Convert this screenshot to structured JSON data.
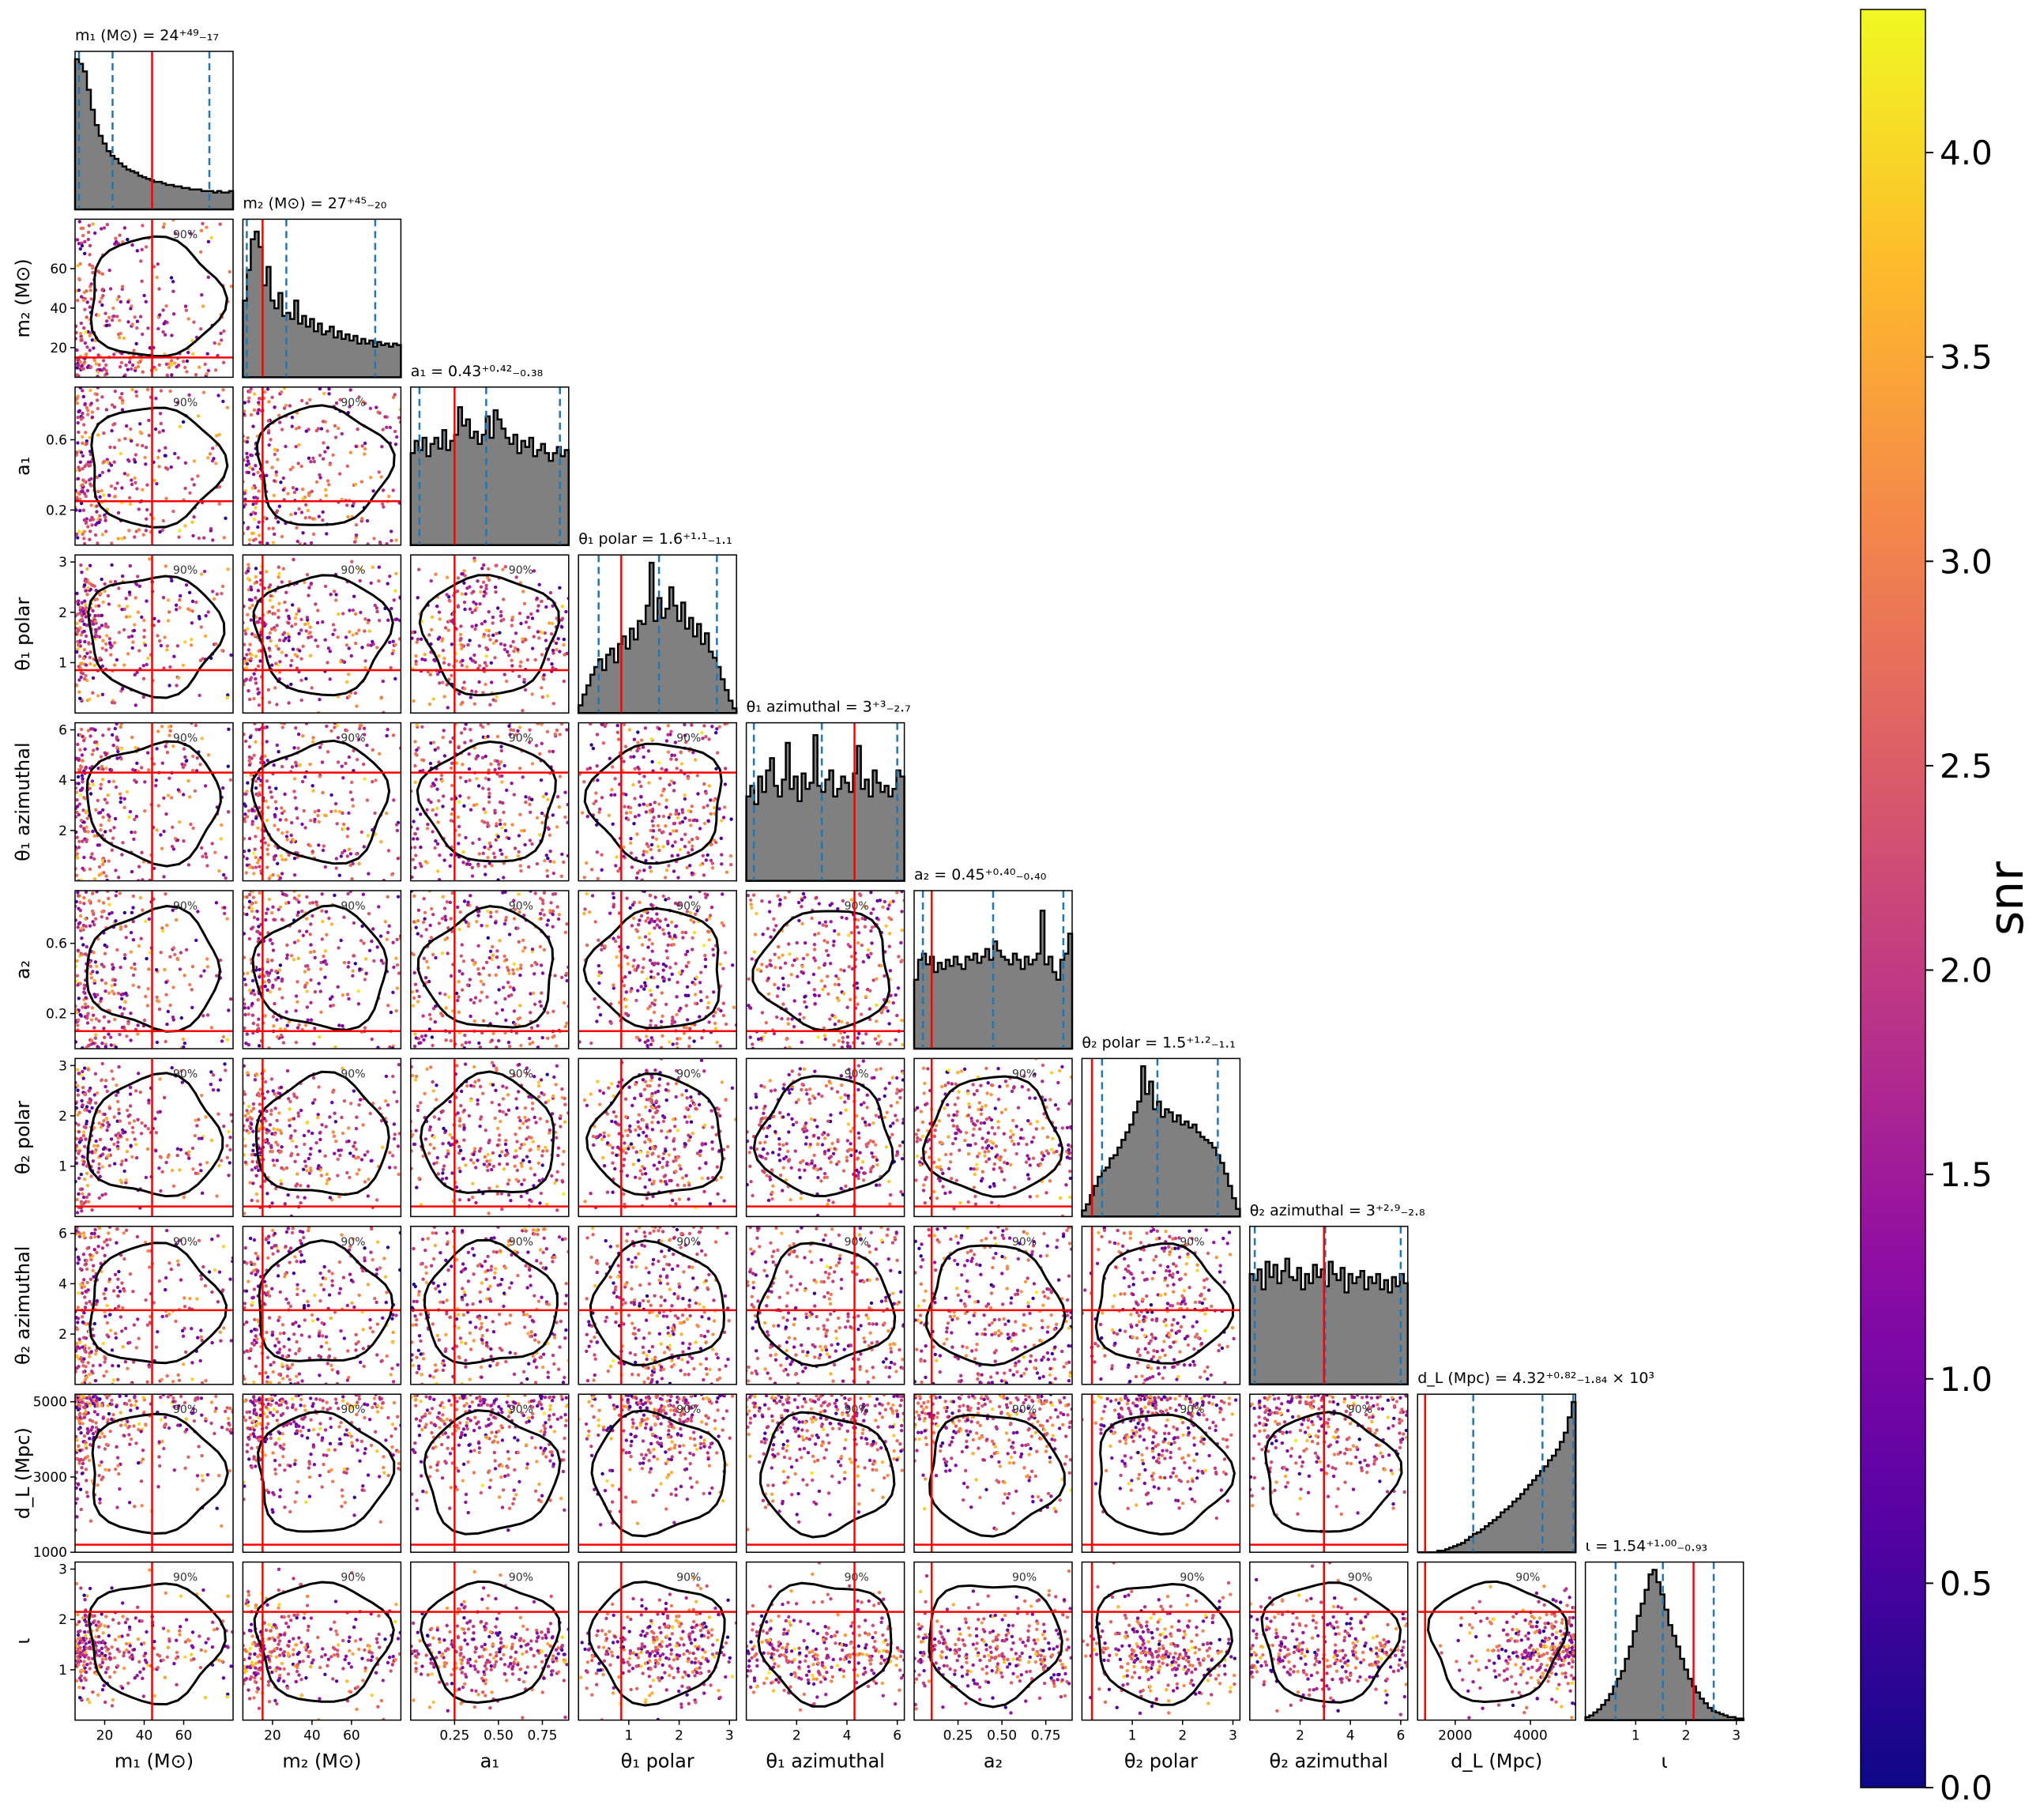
{
  "chart_data": {
    "type": "scatter",
    "variables": [
      {
        "key": "m1",
        "label": "m₁ (M⊙)",
        "ticks": [
          "40",
          "60"
        ],
        "tick_values": [
          40,
          60
        ],
        "range": [
          5,
          85
        ],
        "title": "m₁ (M⊙) = 24⁺⁴⁹₋₁₇",
        "true_value": 44,
        "median": 24,
        "lo": 7,
        "hi": 73,
        "hist": [
          0.98,
          0.95,
          0.9,
          0.78,
          0.65,
          0.55,
          0.48,
          0.43,
          0.38,
          0.35,
          0.33,
          0.3,
          0.28,
          0.26,
          0.25,
          0.24,
          0.22,
          0.21,
          0.2,
          0.19,
          0.18,
          0.18,
          0.17,
          0.16,
          0.16,
          0.15,
          0.15,
          0.14,
          0.14,
          0.13,
          0.13,
          0.13,
          0.12,
          0.12,
          0.12,
          0.11,
          0.12,
          0.11,
          0.11,
          0.12
        ]
      },
      {
        "key": "m2",
        "label": "m₂ (M⊙)",
        "ticks": [
          "20",
          "40",
          "60"
        ],
        "tick_values": [
          20,
          40,
          60
        ],
        "range": [
          5,
          85
        ],
        "title": "m₂ (M⊙) = 27⁺⁴⁵₋₂₀",
        "true_value": 15,
        "median": 27,
        "lo": 7,
        "hi": 72,
        "hist": [
          0.5,
          0.7,
          0.9,
          0.95,
          0.85,
          0.6,
          0.72,
          0.5,
          0.45,
          0.55,
          0.4,
          0.42,
          0.38,
          0.5,
          0.35,
          0.4,
          0.33,
          0.38,
          0.3,
          0.35,
          0.28,
          0.3,
          0.33,
          0.26,
          0.3,
          0.25,
          0.28,
          0.24,
          0.27,
          0.22,
          0.25,
          0.22,
          0.24,
          0.2,
          0.23,
          0.21,
          0.22,
          0.2,
          0.22,
          0.21
        ]
      },
      {
        "key": "a1",
        "label": "a₁",
        "ticks": [
          "0.2",
          "0.6"
        ],
        "tick_values": [
          0.2,
          0.6
        ],
        "range": [
          0,
          0.9
        ],
        "title": "a₁ = 0.43⁺⁰·⁴²₋₀.₃₈",
        "true_value": 0.25,
        "median": 0.43,
        "lo": 0.05,
        "hi": 0.85,
        "hist": [
          0.6,
          0.68,
          0.62,
          0.7,
          0.58,
          0.66,
          0.7,
          0.63,
          0.75,
          0.62,
          0.68,
          0.72,
          0.9,
          0.78,
          0.82,
          0.7,
          0.74,
          0.66,
          0.72,
          0.84,
          0.7,
          0.88,
          0.82,
          0.76,
          0.7,
          0.66,
          0.72,
          0.6,
          0.68,
          0.64,
          0.7,
          0.58,
          0.62,
          0.66,
          0.6,
          0.55,
          0.6,
          0.64,
          0.58,
          0.62
        ]
      },
      {
        "key": "theta1_polar",
        "label": "θ₁ polar",
        "ticks": [
          "1",
          "2",
          "3"
        ],
        "tick_values": [
          1,
          2,
          3
        ],
        "range": [
          0,
          3.14
        ],
        "title": "θ₁ polar = 1.6⁺¹·¹₋₁.₁",
        "true_value": 0.85,
        "median": 1.6,
        "lo": 0.4,
        "hi": 2.75,
        "hist": [
          0.05,
          0.12,
          0.18,
          0.25,
          0.3,
          0.35,
          0.28,
          0.38,
          0.42,
          0.33,
          0.45,
          0.5,
          0.42,
          0.55,
          0.48,
          0.6,
          0.58,
          0.7,
          0.98,
          0.6,
          0.75,
          0.62,
          0.68,
          0.82,
          0.7,
          0.6,
          0.72,
          0.55,
          0.62,
          0.5,
          0.58,
          0.45,
          0.52,
          0.4,
          0.36,
          0.3,
          0.22,
          0.15,
          0.08,
          0.03
        ]
      },
      {
        "key": "theta1_az",
        "label": "θ₁ azimuthal",
        "ticks": [
          "2",
          "4",
          "6"
        ],
        "tick_values": [
          2,
          4,
          6
        ],
        "range": [
          0,
          6.28
        ],
        "title": "θ₁ azimuthal = 3⁺³₋₂.₇",
        "true_value": 4.3,
        "median": 3.0,
        "lo": 0.3,
        "hi": 6.0,
        "hist": [
          0.55,
          0.62,
          0.5,
          0.68,
          0.58,
          0.72,
          0.8,
          0.62,
          0.55,
          0.66,
          0.9,
          0.6,
          0.68,
          0.52,
          0.7,
          0.6,
          0.64,
          0.95,
          0.62,
          0.58,
          0.66,
          0.72,
          0.55,
          0.6,
          0.68,
          0.64,
          0.58,
          0.7,
          0.88,
          0.6,
          0.66,
          0.55,
          0.72,
          0.64,
          0.58,
          0.62,
          0.55,
          0.6,
          0.72,
          0.68
        ]
      },
      {
        "key": "a2",
        "label": "a₂",
        "ticks": [
          "0.2",
          "0.6"
        ],
        "tick_values": [
          0.2,
          0.6
        ],
        "range": [
          0,
          0.9
        ],
        "title": "a₂ = 0.45⁺⁰·⁴⁰₋₀.₄₀",
        "true_value": 0.1,
        "median": 0.45,
        "lo": 0.05,
        "hi": 0.85,
        "hist": [
          0.45,
          0.58,
          0.62,
          0.55,
          0.6,
          0.5,
          0.56,
          0.52,
          0.58,
          0.54,
          0.6,
          0.55,
          0.52,
          0.6,
          0.58,
          0.62,
          0.56,
          0.6,
          0.65,
          0.58,
          0.7,
          0.64,
          0.6,
          0.58,
          0.55,
          0.62,
          0.58,
          0.52,
          0.6,
          0.55,
          0.58,
          0.62,
          0.9,
          0.55,
          0.6,
          0.5,
          0.45,
          0.58,
          0.62,
          0.75
        ]
      },
      {
        "key": "theta2_polar",
        "label": "θ₂ polar",
        "ticks": [
          "1",
          "2",
          "3"
        ],
        "tick_values": [
          1,
          2,
          3
        ],
        "range": [
          0,
          3.14
        ],
        "title": "θ₂ polar = 1.5⁺¹·²₋₁.₁",
        "true_value": 0.2,
        "median": 1.5,
        "lo": 0.4,
        "hi": 2.7,
        "hist": [
          0.04,
          0.08,
          0.14,
          0.2,
          0.26,
          0.3,
          0.32,
          0.38,
          0.4,
          0.45,
          0.5,
          0.55,
          0.6,
          0.68,
          0.75,
          0.98,
          0.8,
          0.88,
          0.7,
          0.75,
          0.65,
          0.7,
          0.68,
          0.62,
          0.66,
          0.6,
          0.62,
          0.58,
          0.6,
          0.55,
          0.52,
          0.5,
          0.48,
          0.45,
          0.4,
          0.35,
          0.28,
          0.2,
          0.12,
          0.05
        ]
      },
      {
        "key": "theta2_az",
        "label": "θ₂ azimuthal",
        "ticks": [
          "2",
          "4",
          "6"
        ],
        "tick_values": [
          2,
          4,
          6
        ],
        "range": [
          0,
          6.28
        ],
        "title": "θ₂ azimuthal = 3⁺²·⁹₋₂.₈",
        "true_value": 2.95,
        "median": 3.0,
        "lo": 0.2,
        "hi": 6.0,
        "hist": [
          0.72,
          0.68,
          0.75,
          0.62,
          0.8,
          0.7,
          0.78,
          0.66,
          0.74,
          0.82,
          0.7,
          0.68,
          0.76,
          0.62,
          0.72,
          0.66,
          0.78,
          0.7,
          0.75,
          0.64,
          0.8,
          0.72,
          0.68,
          0.76,
          0.6,
          0.72,
          0.66,
          0.7,
          0.74,
          0.62,
          0.7,
          0.66,
          0.72,
          0.62,
          0.68,
          0.6,
          0.7,
          0.64,
          0.72,
          0.66
        ]
      },
      {
        "key": "dL",
        "label": "d_L (Mpc)",
        "ticks": [
          "2000",
          "4000"
        ],
        "tick_values": [
          2000,
          4000
        ],
        "range": [
          1000,
          5200
        ],
        "title": "d_L (Mpc) = 4.32⁺⁰·⁸²₋₁.₈₄ × 10³",
        "true_value": 1200,
        "median": 4320,
        "lo": 2480,
        "hi": 5140,
        "hist": [
          0.0,
          0.0,
          0.0,
          0.0,
          0.0,
          0.01,
          0.01,
          0.02,
          0.03,
          0.04,
          0.05,
          0.06,
          0.08,
          0.1,
          0.12,
          0.13,
          0.15,
          0.17,
          0.19,
          0.21,
          0.23,
          0.26,
          0.28,
          0.3,
          0.33,
          0.35,
          0.38,
          0.41,
          0.44,
          0.47,
          0.5,
          0.53,
          0.56,
          0.6,
          0.63,
          0.67,
          0.72,
          0.78,
          0.88,
          0.98
        ]
      },
      {
        "key": "iota",
        "label": "ι",
        "ticks": [
          "1",
          "2",
          "3"
        ],
        "tick_values": [
          1,
          2,
          3
        ],
        "range": [
          0,
          3.14
        ],
        "title": "ι = 1.54⁺¹·⁰⁰₋₀.₉₃",
        "true_value": 2.15,
        "median": 1.54,
        "lo": 0.6,
        "hi": 2.55,
        "hist": [
          0.02,
          0.03,
          0.05,
          0.07,
          0.1,
          0.13,
          0.17,
          0.22,
          0.27,
          0.32,
          0.4,
          0.48,
          0.58,
          0.68,
          0.76,
          0.85,
          0.95,
          0.98,
          0.9,
          0.82,
          0.72,
          0.62,
          0.55,
          0.48,
          0.4,
          0.33,
          0.27,
          0.22,
          0.18,
          0.14,
          0.11,
          0.08,
          0.06,
          0.05,
          0.04,
          0.03,
          0.02,
          0.02,
          0.01,
          0.01
        ]
      }
    ],
    "y_tick_labels": {
      "m2": [
        "20",
        "40",
        "60"
      ],
      "a1": [
        "0.2",
        "0.6"
      ],
      "theta1_polar": [
        "1",
        "2",
        "3"
      ],
      "theta1_az": [
        "2",
        "4",
        "6"
      ],
      "a2": [
        "0.2",
        "0.6"
      ],
      "theta2_polar": [
        "1",
        "2",
        "3"
      ],
      "theta2_az": [
        "2",
        "4",
        "6"
      ],
      "dL": [
        "1000",
        "3000",
        "5000"
      ],
      "iota": [
        "1",
        "2",
        "3"
      ]
    },
    "x_tick_labels": {
      "m1": [
        "20",
        "40",
        "60"
      ],
      "m2": [
        "20",
        "40",
        "60"
      ],
      "a1": [
        "0.25",
        "0.50",
        "0.75"
      ],
      "theta1_polar": [
        "1",
        "2",
        "3"
      ],
      "theta1_az": [
        "2",
        "4",
        "6"
      ],
      "a2": [
        "0.25",
        "0.50",
        "0.75"
      ],
      "theta2_polar": [
        "1",
        "2",
        "3"
      ],
      "theta2_az": [
        "2",
        "4",
        "6"
      ],
      "dL": [
        "2000",
        "4000"
      ],
      "iota": [
        "1",
        "2",
        "3"
      ]
    },
    "contour_label": "90%",
    "colorbar": {
      "label": "snr",
      "min": 0.0,
      "max": 4.35,
      "ticks": [
        "0.0",
        "0.5",
        "1.0",
        "1.5",
        "2.0",
        "2.5",
        "3.0",
        "3.5",
        "4.0"
      ],
      "tick_values": [
        0,
        0.5,
        1,
        1.5,
        2,
        2.5,
        3,
        3.5,
        4
      ]
    },
    "colors": {
      "hist_fill": "#808080",
      "hist_edge": "#000000",
      "quantile_line": "#1f77b4",
      "truth_line": "#ff0000",
      "contour": "#000000",
      "colormap": "plasma"
    }
  }
}
